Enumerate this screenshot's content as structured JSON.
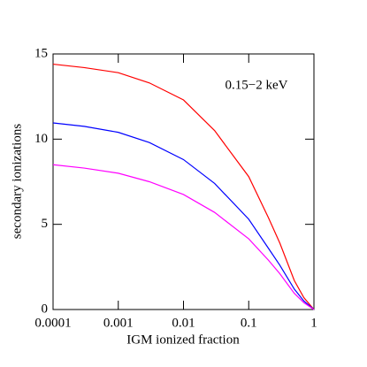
{
  "chart_data": {
    "type": "line",
    "annotation": "0.15−2 keV",
    "xlabel": "IGM ionized fraction",
    "ylabel": "secondary ionizations",
    "x": [
      0.0001,
      0.0003,
      0.001,
      0.003,
      0.01,
      0.03,
      0.1,
      0.2,
      0.3,
      0.5,
      0.7,
      1
    ],
    "series": [
      {
        "color": "#ff0000",
        "values": [
          14.4,
          14.2,
          13.9,
          13.3,
          12.3,
          10.5,
          7.8,
          5.4,
          3.9,
          1.7,
          0.7,
          0
        ]
      },
      {
        "color": "#0000ff",
        "values": [
          10.95,
          10.75,
          10.4,
          9.8,
          8.8,
          7.4,
          5.3,
          3.6,
          2.6,
          1.2,
          0.5,
          0
        ]
      },
      {
        "color": "#ff00ff",
        "values": [
          8.5,
          8.3,
          8.0,
          7.5,
          6.75,
          5.7,
          4.15,
          2.9,
          2.1,
          0.95,
          0.4,
          0
        ]
      }
    ],
    "xscale": "log",
    "xlim": [
      0.0001,
      1
    ],
    "xticks": [
      0.0001,
      0.001,
      0.01,
      0.1,
      1
    ],
    "ylim": [
      0,
      15
    ],
    "yticks": [
      0,
      5,
      10,
      15
    ]
  }
}
